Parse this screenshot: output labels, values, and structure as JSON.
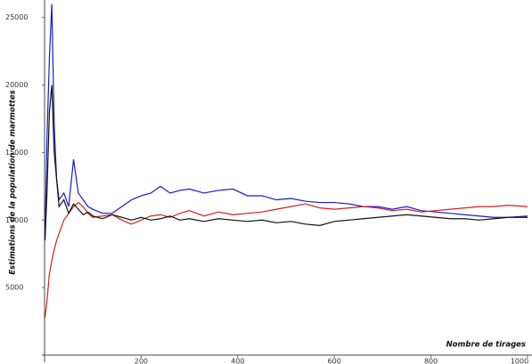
{
  "chart_data": {
    "type": "line",
    "y_label": "Estimations de la population de marmottes",
    "x_label": "Nombre de tirages",
    "x": [
      1,
      5,
      10,
      15,
      20,
      25,
      30,
      40,
      50,
      60,
      70,
      80,
      90,
      100,
      120,
      140,
      160,
      180,
      200,
      220,
      240,
      260,
      280,
      300,
      330,
      360,
      390,
      420,
      450,
      480,
      510,
      540,
      570,
      600,
      630,
      660,
      690,
      720,
      750,
      780,
      810,
      840,
      870,
      900,
      930,
      960,
      1000
    ],
    "series": [
      {
        "name": "blue",
        "color": "#1a1acc",
        "values": [
          9000,
          16000,
          22000,
          26000,
          17000,
          13000,
          11500,
          12000,
          11000,
          14500,
          12000,
          11500,
          11000,
          10800,
          10500,
          10500,
          11000,
          11500,
          11800,
          12000,
          12500,
          12000,
          12200,
          12300,
          12000,
          12200,
          12300,
          11800,
          11800,
          11500,
          11600,
          11400,
          11300,
          11300,
          11200,
          11000,
          11000,
          10800,
          11000,
          10700,
          10600,
          10500,
          10400,
          10300,
          10200,
          10200,
          10300
        ]
      },
      {
        "name": "red",
        "color": "#d42020",
        "values": [
          2800,
          4000,
          6000,
          7000,
          7800,
          8500,
          9000,
          10000,
          10500,
          11000,
          11300,
          11000,
          10500,
          10200,
          10300,
          10400,
          10000,
          9700,
          10000,
          10300,
          10400,
          10200,
          10500,
          10700,
          10300,
          10600,
          10400,
          10500,
          10600,
          10800,
          11000,
          11200,
          10900,
          10800,
          10900,
          11000,
          10900,
          10700,
          10800,
          10600,
          10700,
          10800,
          10900,
          11000,
          11000,
          11100,
          11000
        ]
      },
      {
        "name": "black",
        "color": "#111111",
        "values": [
          8500,
          12000,
          18000,
          20000,
          15000,
          13000,
          11000,
          11500,
          10500,
          11200,
          10800,
          10400,
          10600,
          10300,
          10100,
          10400,
          10200,
          10000,
          10200,
          10000,
          10100,
          10300,
          10000,
          10100,
          9900,
          10100,
          10000,
          9900,
          10000,
          9800,
          9900,
          9700,
          9600,
          9900,
          10000,
          10100,
          10200,
          10300,
          10400,
          10300,
          10200,
          10100,
          10100,
          10000,
          10100,
          10200,
          10200
        ]
      }
    ],
    "xlim": [
      0,
      1000
    ],
    "ylim": [
      0,
      26300
    ],
    "xticks": [
      200,
      400,
      600,
      800,
      1000
    ],
    "yticks": [
      5000,
      10000,
      15000,
      20000,
      25000
    ]
  }
}
